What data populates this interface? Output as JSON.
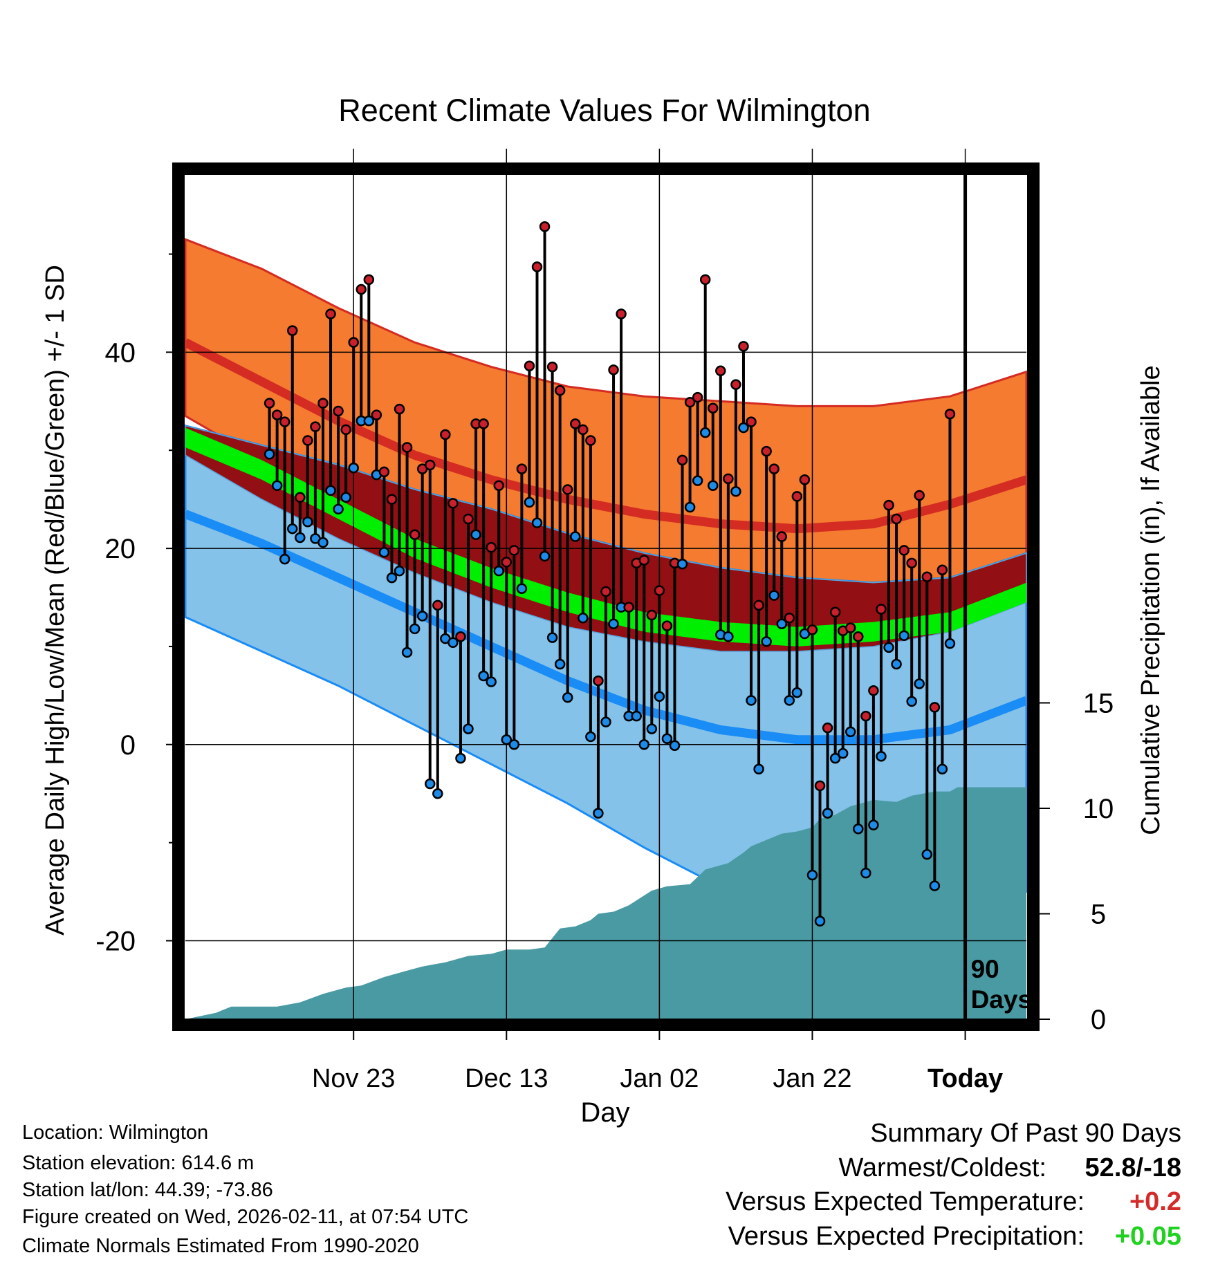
{
  "chart_data": {
    "type": "climate-range",
    "title": "Recent Climate Values For Wilmington",
    "xlabel": "Day",
    "ylabel_left": "Average Daily High/Low/Mean (Red/Blue/Green) +/- 1 SD",
    "ylabel_right": "Cumulative Precipitation (in), If Available",
    "x_range": [
      -100,
      10
    ],
    "y_left_range": [
      -28,
      58
    ],
    "y_right_range": [
      0,
      40
    ],
    "x_ticks": [
      {
        "x": -78,
        "label": "Nov 23"
      },
      {
        "x": -58,
        "label": "Dec 13"
      },
      {
        "x": -38,
        "label": "Jan 02"
      },
      {
        "x": -18,
        "label": "Jan 22"
      },
      {
        "x": 2,
        "label": "Today"
      }
    ],
    "y_left_ticks": [
      {
        "y": -20,
        "label": "-20"
      },
      {
        "y": 0,
        "label": "0"
      },
      {
        "y": 20,
        "label": "20"
      },
      {
        "y": 40,
        "label": "40"
      }
    ],
    "y_left_minor": [
      -10,
      10,
      30,
      50
    ],
    "y_right_ticks": [
      {
        "y": 0,
        "label": "0"
      },
      {
        "y": 5,
        "label": "5"
      },
      {
        "y": 10,
        "label": "10"
      },
      {
        "y": 15,
        "label": "15"
      }
    ],
    "today_x": 2,
    "today_label_1": "90",
    "today_label_2": "Days",
    "normals": {
      "x": [
        -100,
        -90,
        -80,
        -70,
        -60,
        -50,
        -40,
        -30,
        -20,
        -10,
        0,
        10
      ],
      "high_upper": [
        51.5,
        48.5,
        44.5,
        41.0,
        38.5,
        36.5,
        35.5,
        35.0,
        34.5,
        34.5,
        35.5,
        38.0
      ],
      "high_mean": [
        41.0,
        37.0,
        33.0,
        29.5,
        27.0,
        25.0,
        23.5,
        22.5,
        22.0,
        22.5,
        24.5,
        27.0
      ],
      "high_lower": [
        32.5,
        30.5,
        28.5,
        26.0,
        24.0,
        21.5,
        19.5,
        18.0,
        17.0,
        16.5,
        17.0,
        19.5
      ],
      "mean_upper": [
        33.5,
        29.0,
        25.0,
        21.0,
        18.0,
        15.5,
        13.5,
        12.5,
        12.0,
        12.5,
        13.5,
        16.5
      ],
      "mean_lower": [
        29.5,
        25.0,
        21.0,
        17.5,
        14.5,
        12.0,
        10.5,
        9.5,
        9.5,
        10.0,
        11.5,
        14.5
      ],
      "low_mean": [
        23.5,
        20.5,
        17.0,
        13.5,
        10.0,
        6.5,
        3.5,
        1.5,
        0.5,
        0.5,
        1.5,
        4.5
      ],
      "low_lower": [
        13.0,
        9.5,
        6.0,
        2.0,
        -2.0,
        -6.0,
        -10.5,
        -14.5,
        -17.0,
        -18.0,
        -17.5,
        -15.0
      ]
    },
    "daily": {
      "x_start": -89,
      "x_step": 1,
      "highs": [
        34.8,
        33.6,
        32.9,
        42.2,
        25.2,
        31.0,
        32.4,
        34.8,
        43.9,
        34.0,
        32.1,
        41.0,
        46.4,
        47.4,
        33.6,
        27.8,
        25.0,
        34.2,
        30.3,
        21.4,
        28.1,
        28.5,
        14.2,
        31.6,
        24.6,
        11.0,
        23.0,
        32.7,
        32.7,
        20.1,
        26.4,
        18.6,
        19.8,
        28.1,
        38.6,
        48.7,
        52.8,
        38.5,
        36.1,
        26.0,
        32.7,
        32.1,
        31.0,
        6.5,
        15.6,
        38.2,
        43.9,
        14.0,
        18.5,
        18.8,
        13.2,
        15.7,
        12.1,
        18.5,
        29.0,
        34.9,
        35.4,
        47.4,
        34.3,
        38.1,
        27.1,
        36.7,
        40.6,
        32.9,
        14.2,
        29.9,
        28.1,
        21.2,
        12.9,
        25.3,
        27.0,
        11.7,
        -4.2,
        1.7,
        13.5,
        11.6,
        11.9,
        11.0,
        2.9,
        5.5,
        13.8,
        24.4,
        23.0,
        19.8,
        18.5,
        25.4,
        17.1,
        3.8,
        17.8,
        33.7
      ],
      "lows": [
        29.6,
        26.4,
        18.9,
        22.0,
        21.1,
        22.7,
        21.0,
        20.6,
        25.9,
        24.0,
        25.2,
        28.2,
        33.0,
        33.0,
        27.5,
        19.6,
        17.0,
        17.7,
        9.4,
        11.8,
        13.1,
        -4.0,
        -5.0,
        10.8,
        10.4,
        -1.4,
        1.6,
        21.4,
        7.0,
        6.4,
        17.7,
        0.5,
        0.0,
        15.9,
        24.7,
        22.6,
        19.2,
        10.9,
        8.2,
        4.8,
        21.2,
        12.9,
        0.8,
        -7.0,
        2.3,
        12.3,
        14.0,
        2.9,
        2.9,
        0.0,
        1.6,
        4.9,
        0.6,
        -0.1,
        18.4,
        24.2,
        26.9,
        31.8,
        26.4,
        11.2,
        11.0,
        25.8,
        32.3,
        4.5,
        -2.5,
        10.5,
        15.2,
        12.3,
        4.5,
        5.3,
        11.3,
        -13.3,
        -18.0,
        -7.0,
        -1.4,
        -0.9,
        1.3,
        -8.6,
        -13.1,
        -8.2,
        -1.2,
        9.9,
        8.2,
        11.1,
        4.4,
        6.2,
        -11.2,
        -14.4,
        -2.5,
        10.3
      ]
    },
    "precip": {
      "x": [
        -100,
        -96,
        -94,
        -92,
        -88,
        -85,
        -82,
        -79,
        -77,
        -74,
        -71,
        -69,
        -66,
        -63,
        -60,
        -58,
        -55,
        -53,
        -51,
        -49,
        -47,
        -46,
        -44,
        -42,
        -39,
        -37,
        -34,
        -32,
        -29,
        -27,
        -26,
        -24,
        -22,
        -20,
        -18,
        -17,
        -15,
        -13,
        -10,
        -7,
        -5,
        -2,
        0,
        1,
        10
      ],
      "y": [
        0.0,
        0.3,
        0.6,
        0.6,
        0.6,
        0.8,
        1.2,
        1.5,
        1.6,
        2.0,
        2.3,
        2.5,
        2.7,
        3.0,
        3.1,
        3.3,
        3.3,
        3.4,
        4.3,
        4.4,
        4.7,
        5.0,
        5.1,
        5.4,
        6.1,
        6.3,
        6.4,
        7.1,
        7.4,
        7.9,
        8.2,
        8.5,
        8.8,
        8.9,
        9.1,
        9.5,
        9.7,
        10.1,
        10.4,
        10.3,
        10.6,
        10.8,
        10.8,
        11.0,
        11.0
      ]
    }
  },
  "meta": {
    "location": "Location: Wilmington",
    "elevation": "Station elevation: 614.6 m",
    "latlon": "Station lat/lon: 44.39; -73.86",
    "created": "Figure created on Wed, 2026-02-11, at 07:54 UTC",
    "normals": "Climate Normals Estimated From 1990-2020"
  },
  "summary": {
    "title": "Summary Of Past 90 Days",
    "warm_cold_label": "Warmest/Coldest:",
    "warm_cold_value": "52.8/-18",
    "temp_label": "Versus Expected Temperature:",
    "temp_value": "+0.2",
    "precip_label": "Versus Expected Precipitation:",
    "precip_value": "+0.05"
  },
  "colors": {
    "high_band": "#f47b30",
    "high_line": "#d42b22",
    "mean_band": "#920f13",
    "mean_green": "#00ee00",
    "low_band": "#84c2ea",
    "low_line": "#1a8cf5",
    "precip": "#4a9aa4",
    "high_dot": "#c9202c",
    "low_dot": "#1d8be8",
    "temp_value": "#d32a2a",
    "precip_value": "#1ed21e"
  }
}
